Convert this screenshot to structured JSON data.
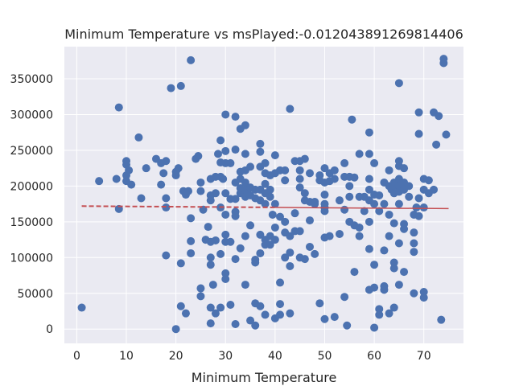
{
  "chart_data": {
    "type": "scatter",
    "title": "Minimum Temperature vs msPlayed:-0.012043891269814406",
    "xlabel": "Minimum Temperature",
    "ylabel": "",
    "xlim": [
      -2.5,
      78
    ],
    "ylim": [
      -20000,
      395000
    ],
    "x_ticks": [
      0,
      10,
      20,
      30,
      40,
      50,
      60,
      70
    ],
    "y_ticks": [
      0,
      50000,
      100000,
      150000,
      200000,
      250000,
      300000,
      350000
    ],
    "grid": true,
    "background": "#eaeaf2",
    "grid_color": "#ffffff",
    "point_color": "#4c72b0",
    "trend_color": "#c44e52",
    "trend_line": {
      "x": [
        1,
        75
      ],
      "y": [
        172000,
        168500
      ],
      "style": "dashed-then-solid"
    },
    "points": [
      [
        1,
        30000
      ],
      [
        4.5,
        207000
      ],
      [
        8,
        210000
      ],
      [
        8.5,
        168000
      ],
      [
        8.5,
        310000
      ],
      [
        10,
        235000
      ],
      [
        10,
        230000
      ],
      [
        10,
        215000
      ],
      [
        10,
        207000
      ],
      [
        10.5,
        222000
      ],
      [
        11,
        202000
      ],
      [
        12.5,
        268000
      ],
      [
        13,
        183000
      ],
      [
        14,
        225000
      ],
      [
        16,
        238000
      ],
      [
        17,
        232000
      ],
      [
        17,
        202000
      ],
      [
        17.5,
        218000
      ],
      [
        18,
        235000
      ],
      [
        18,
        183000
      ],
      [
        18,
        103000
      ],
      [
        18,
        170000
      ],
      [
        19,
        337000
      ],
      [
        20,
        0
      ],
      [
        20,
        215000
      ],
      [
        20,
        220000
      ],
      [
        20.5,
        225000
      ],
      [
        21,
        340000
      ],
      [
        21,
        92000
      ],
      [
        21,
        32000
      ],
      [
        21.5,
        193000
      ],
      [
        22,
        188000
      ],
      [
        22,
        22000
      ],
      [
        22.5,
        193000
      ],
      [
        23,
        376000
      ],
      [
        23,
        155000
      ],
      [
        23,
        123000
      ],
      [
        23,
        106000
      ],
      [
        24,
        238000
      ],
      [
        24.5,
        242000
      ],
      [
        25,
        205000
      ],
      [
        25,
        193000
      ],
      [
        25,
        57000
      ],
      [
        25,
        46000
      ],
      [
        25.5,
        167000
      ],
      [
        26,
        125000
      ],
      [
        26.5,
        143000
      ],
      [
        27,
        210000
      ],
      [
        27,
        187000
      ],
      [
        27,
        180000
      ],
      [
        27,
        122000
      ],
      [
        27,
        100000
      ],
      [
        27,
        90000
      ],
      [
        27,
        30000
      ],
      [
        27,
        8000
      ],
      [
        27.5,
        62000
      ],
      [
        28,
        213000
      ],
      [
        28,
        190000
      ],
      [
        28,
        124000
      ],
      [
        28,
        22000
      ],
      [
        28.5,
        245000
      ],
      [
        29,
        264000
      ],
      [
        29,
        233000
      ],
      [
        29,
        213000
      ],
      [
        29,
        170000
      ],
      [
        29,
        105000
      ],
      [
        29,
        30000
      ],
      [
        29.5,
        210000
      ],
      [
        30,
        300000
      ],
      [
        30,
        249000
      ],
      [
        30,
        232000
      ],
      [
        30,
        190000
      ],
      [
        30,
        160000
      ],
      [
        30,
        132000
      ],
      [
        30,
        122000
      ],
      [
        30,
        78000
      ],
      [
        30,
        70000
      ],
      [
        31,
        232000
      ],
      [
        31,
        182000
      ],
      [
        31,
        122000
      ],
      [
        31,
        34000
      ],
      [
        32,
        297000
      ],
      [
        32,
        251000
      ],
      [
        32,
        205000
      ],
      [
        32,
        182000
      ],
      [
        32,
        164000
      ],
      [
        32,
        158000
      ],
      [
        32,
        98000
      ],
      [
        32,
        7000
      ],
      [
        33,
        280000
      ],
      [
        33,
        220000
      ],
      [
        33,
        210000
      ],
      [
        33,
        197000
      ],
      [
        33,
        190000
      ],
      [
        33,
        113000
      ],
      [
        34,
        285000
      ],
      [
        34,
        245000
      ],
      [
        34,
        222000
      ],
      [
        34,
        205000
      ],
      [
        34,
        195000
      ],
      [
        34,
        185000
      ],
      [
        34,
        130000
      ],
      [
        34,
        62000
      ],
      [
        34.5,
        190000
      ],
      [
        35,
        227000
      ],
      [
        35,
        198000
      ],
      [
        35,
        187000
      ],
      [
        35,
        145000
      ],
      [
        35,
        12000
      ],
      [
        36,
        195000
      ],
      [
        36,
        183000
      ],
      [
        36,
        97000
      ],
      [
        36,
        93000
      ],
      [
        36,
        36000
      ],
      [
        36,
        5000
      ],
      [
        37,
        259000
      ],
      [
        37,
        248000
      ],
      [
        37,
        227000
      ],
      [
        37,
        195000
      ],
      [
        37,
        180000
      ],
      [
        37,
        132000
      ],
      [
        37,
        106000
      ],
      [
        37,
        32000
      ],
      [
        38,
        232000
      ],
      [
        38,
        218000
      ],
      [
        38,
        203000
      ],
      [
        38,
        190000
      ],
      [
        38,
        175000
      ],
      [
        38,
        125000
      ],
      [
        38,
        118000
      ],
      [
        38,
        20000
      ],
      [
        39,
        215000
      ],
      [
        39,
        195000
      ],
      [
        39,
        185000
      ],
      [
        39,
        130000
      ],
      [
        39,
        118000
      ],
      [
        39.5,
        160000
      ],
      [
        40,
        243000
      ],
      [
        40,
        218000
      ],
      [
        40,
        175000
      ],
      [
        40,
        142000
      ],
      [
        40,
        125000
      ],
      [
        40,
        15000
      ],
      [
        41,
        222000
      ],
      [
        41,
        157000
      ],
      [
        41,
        65000
      ],
      [
        41,
        35000
      ],
      [
        41,
        20000
      ],
      [
        42,
        222000
      ],
      [
        42,
        208000
      ],
      [
        42,
        150000
      ],
      [
        42,
        135000
      ],
      [
        42,
        100000
      ],
      [
        43,
        308000
      ],
      [
        43,
        130000
      ],
      [
        43,
        107000
      ],
      [
        43,
        88000
      ],
      [
        43,
        22000
      ],
      [
        44,
        235000
      ],
      [
        44,
        162000
      ],
      [
        44,
        137000
      ],
      [
        45,
        235000
      ],
      [
        45,
        222000
      ],
      [
        45,
        210000
      ],
      [
        45,
        198000
      ],
      [
        45,
        137000
      ],
      [
        45,
        100000
      ],
      [
        46,
        238000
      ],
      [
        46,
        190000
      ],
      [
        46,
        180000
      ],
      [
        46,
        98000
      ],
      [
        47,
        218000
      ],
      [
        47,
        178000
      ],
      [
        47,
        152000
      ],
      [
        47,
        115000
      ],
      [
        48,
        178000
      ],
      [
        48,
        175000
      ],
      [
        48,
        105000
      ],
      [
        49,
        215000
      ],
      [
        49,
        208000
      ],
      [
        49,
        36000
      ],
      [
        50,
        225000
      ],
      [
        50,
        205000
      ],
      [
        50,
        188000
      ],
      [
        50,
        175000
      ],
      [
        50,
        170000
      ],
      [
        50,
        165000
      ],
      [
        50,
        128000
      ],
      [
        50,
        14000
      ],
      [
        51,
        218000
      ],
      [
        51,
        207000
      ],
      [
        51,
        130000
      ],
      [
        52,
        222000
      ],
      [
        52,
        210000
      ],
      [
        52,
        17000
      ],
      [
        53,
        180000
      ],
      [
        53,
        133000
      ],
      [
        54,
        232000
      ],
      [
        54,
        213000
      ],
      [
        54,
        167000
      ],
      [
        54,
        45000
      ],
      [
        54.5,
        5000
      ],
      [
        55,
        213000
      ],
      [
        55,
        200000
      ],
      [
        55,
        185000
      ],
      [
        55,
        150000
      ],
      [
        55.5,
        293000
      ],
      [
        56,
        212000
      ],
      [
        56,
        145000
      ],
      [
        56,
        80000
      ],
      [
        57,
        245000
      ],
      [
        57,
        185000
      ],
      [
        57,
        142000
      ],
      [
        57,
        130000
      ],
      [
        58,
        165000
      ],
      [
        58,
        185000
      ],
      [
        59,
        275000
      ],
      [
        59,
        245000
      ],
      [
        59,
        210000
      ],
      [
        59,
        195000
      ],
      [
        59,
        180000
      ],
      [
        59,
        150000
      ],
      [
        59,
        112000
      ],
      [
        59,
        55000
      ],
      [
        60,
        232000
      ],
      [
        60,
        188000
      ],
      [
        60,
        175000
      ],
      [
        60,
        90000
      ],
      [
        60,
        58000
      ],
      [
        60,
        2000
      ],
      [
        61,
        187000
      ],
      [
        61,
        165000
      ],
      [
        61,
        20000
      ],
      [
        61,
        28000
      ],
      [
        62,
        205000
      ],
      [
        62,
        175000
      ],
      [
        62,
        110000
      ],
      [
        62,
        60000
      ],
      [
        62,
        55000
      ],
      [
        63,
        222000
      ],
      [
        63,
        200000
      ],
      [
        63,
        160000
      ],
      [
        63,
        130000
      ],
      [
        63,
        22000
      ],
      [
        63.5,
        195000
      ],
      [
        64,
        205000
      ],
      [
        64,
        200000
      ],
      [
        64,
        190000
      ],
      [
        64,
        148000
      ],
      [
        64,
        93000
      ],
      [
        64,
        85000
      ],
      [
        64,
        30000
      ],
      [
        65,
        344000
      ],
      [
        65,
        235000
      ],
      [
        65,
        228000
      ],
      [
        65,
        210000
      ],
      [
        65,
        200000
      ],
      [
        65,
        192000
      ],
      [
        65,
        175000
      ],
      [
        65,
        120000
      ],
      [
        65,
        62000
      ],
      [
        66,
        225000
      ],
      [
        66,
        205000
      ],
      [
        66,
        195000
      ],
      [
        66,
        147000
      ],
      [
        66,
        140000
      ],
      [
        66,
        80000
      ],
      [
        67,
        200000
      ],
      [
        67,
        185000
      ],
      [
        68,
        160000
      ],
      [
        68,
        135000
      ],
      [
        68,
        120000
      ],
      [
        68,
        108000
      ],
      [
        68,
        50000
      ],
      [
        68.5,
        170000
      ],
      [
        69,
        303000
      ],
      [
        69,
        273000
      ],
      [
        69,
        183000
      ],
      [
        69,
        158000
      ],
      [
        70,
        210000
      ],
      [
        70,
        195000
      ],
      [
        70,
        170000
      ],
      [
        70,
        52000
      ],
      [
        70,
        44000
      ],
      [
        71,
        208000
      ],
      [
        71,
        190000
      ],
      [
        72,
        303000
      ],
      [
        72,
        195000
      ],
      [
        72.5,
        258000
      ],
      [
        73,
        298000
      ],
      [
        73.5,
        13000
      ],
      [
        74,
        378000
      ],
      [
        74,
        372000
      ],
      [
        74.5,
        272000
      ]
    ]
  }
}
